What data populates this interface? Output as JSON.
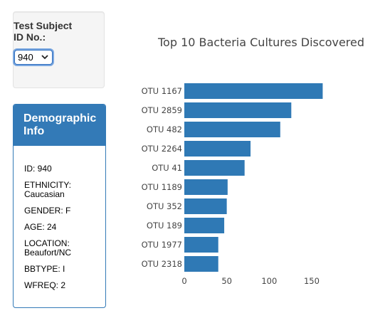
{
  "selector": {
    "label": "Test Subject ID No.:",
    "selected": "940"
  },
  "demographics": {
    "title": "Demographic Info",
    "rows": [
      "ID: 940",
      "ETHNICITY: Caucasian",
      "GENDER: F",
      "AGE: 24",
      "LOCATION: Beaufort/NC",
      "BBTYPE: I",
      "WFREQ: 2"
    ]
  },
  "colors": {
    "bar": "#2f79b5",
    "panel": "#337ab7"
  },
  "icons": {
    "select": "chevron-down-icon"
  },
  "chart_data": {
    "type": "bar",
    "orientation": "horizontal",
    "title": "Top 10 Bacteria Cultures Discovered",
    "categories": [
      "OTU 1167",
      "OTU 2859",
      "OTU 482",
      "OTU 2264",
      "OTU 41",
      "OTU 1189",
      "OTU 352",
      "OTU 189",
      "OTU 1977",
      "OTU 2318"
    ],
    "values": [
      163,
      126,
      113,
      78,
      71,
      51,
      50,
      47,
      40,
      40
    ],
    "xticks": [
      0,
      50,
      100,
      150
    ],
    "xlim": [
      0,
      171
    ],
    "grid": false,
    "xlabel": "",
    "ylabel": ""
  }
}
